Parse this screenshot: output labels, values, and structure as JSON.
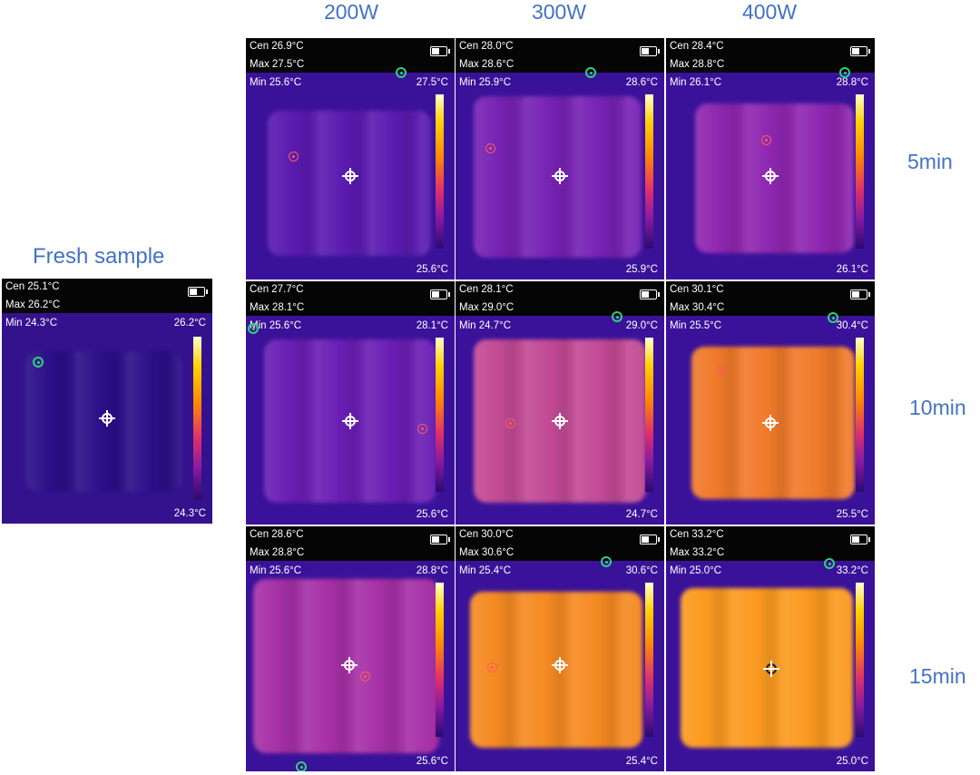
{
  "columns": [
    "200W",
    "300W",
    "400W"
  ],
  "rows": [
    "5min",
    "10min",
    "15min"
  ],
  "fresh": {
    "label": "Fresh sample",
    "cen": "Cen 25.1°C",
    "max": "Max 26.2°C",
    "min": "Min 24.3°C",
    "scale_max": "26.2°C",
    "scale_min": "24.3°C"
  },
  "panels": [
    {
      "cen": "Cen 26.9°C",
      "max": "Max 27.5°C",
      "min": "Min 25.6°C",
      "scale_max": "27.5°C",
      "scale_min": "25.6°C"
    },
    {
      "cen": "Cen 28.0°C",
      "max": "Max 28.6°C",
      "min": "Min 25.9°C",
      "scale_max": "28.6°C",
      "scale_min": "25.9°C"
    },
    {
      "cen": "Cen 28.4°C",
      "max": "Max 28.8°C",
      "min": "Min 26.1°C",
      "scale_max": "28.8°C",
      "scale_min": "26.1°C"
    },
    {
      "cen": "Cen 27.7°C",
      "max": "Max 28.1°C",
      "min": "Min 25.6°C",
      "scale_max": "28.1°C",
      "scale_min": "25.6°C"
    },
    {
      "cen": "Cen 28.1°C",
      "max": "Max 29.0°C",
      "min": "Min 24.7°C",
      "scale_max": "29.0°C",
      "scale_min": "24.7°C"
    },
    {
      "cen": "Cen 30.1°C",
      "max": "Max 30.4°C",
      "min": "Min 25.5°C",
      "scale_max": "30.4°C",
      "scale_min": "25.5°C"
    },
    {
      "cen": "Cen 28.6°C",
      "max": "Max 28.8°C",
      "min": "Min 25.6°C",
      "scale_max": "28.8°C",
      "scale_min": "25.6°C"
    },
    {
      "cen": "Cen 30.0°C",
      "max": "Max 30.6°C",
      "min": "Min 25.4°C",
      "scale_max": "30.6°C",
      "scale_min": "25.4°C"
    },
    {
      "cen": "Cen 33.2°C",
      "max": "Max 33.2°C",
      "min": "Min 25.0°C",
      "scale_max": "33.2°C",
      "scale_min": "25.0°C"
    }
  ],
  "colors": {
    "label_blue": "#4472c4",
    "cold": "#3a1299",
    "warm": "#ff8a00"
  }
}
